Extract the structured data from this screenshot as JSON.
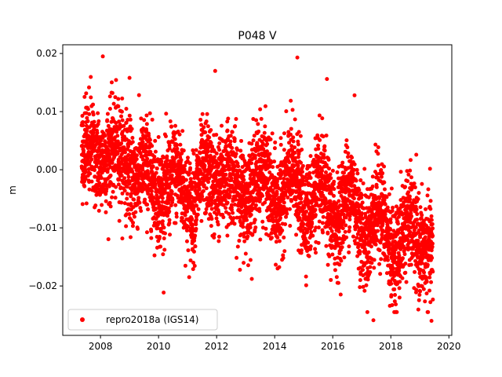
{
  "chart_data": {
    "type": "scatter",
    "title": "P048 V",
    "xlabel": "",
    "ylabel": "m",
    "xlim": [
      2006.7,
      2020.1
    ],
    "ylim": [
      -0.0285,
      0.0215
    ],
    "x_ticks": [
      2008,
      2010,
      2012,
      2014,
      2016,
      2018,
      2020
    ],
    "x_tick_labels": [
      "2008",
      "2010",
      "2012",
      "2014",
      "2016",
      "2018",
      "2020"
    ],
    "y_ticks": [
      -0.02,
      -0.01,
      0.0,
      0.01,
      0.02
    ],
    "y_tick_labels": [
      "−0.02",
      "−0.01",
      "0.00",
      "0.01",
      "0.02"
    ],
    "grid": false,
    "legend_position": "lower-left",
    "series": [
      {
        "name": "repro2018a (IGS14)",
        "color": "#ff0000",
        "marker": "circle",
        "trend_points": [
          [
            2007.35,
            0.001
          ],
          [
            2007.7,
            0.004
          ],
          [
            2008.1,
            0.003
          ],
          [
            2008.5,
            0.0015
          ],
          [
            2008.9,
            0.003
          ],
          [
            2009.3,
            -0.002
          ],
          [
            2009.8,
            -0.001
          ],
          [
            2010.3,
            -0.004
          ],
          [
            2010.8,
            -0.001
          ],
          [
            2011.2,
            -0.006
          ],
          [
            2011.7,
            -0.0005
          ],
          [
            2012.2,
            -0.001
          ],
          [
            2012.7,
            -0.0035
          ],
          [
            2013.2,
            -0.0025
          ],
          [
            2013.7,
            -0.0015
          ],
          [
            2014.2,
            -0.0055
          ],
          [
            2014.7,
            -0.0015
          ],
          [
            2015.2,
            -0.0065
          ],
          [
            2015.7,
            -0.004
          ],
          [
            2016.2,
            -0.0085
          ],
          [
            2016.7,
            -0.004
          ],
          [
            2017.2,
            -0.0115
          ],
          [
            2017.7,
            -0.0075
          ],
          [
            2018.2,
            -0.0145
          ],
          [
            2018.7,
            -0.0095
          ],
          [
            2019.1,
            -0.0125
          ],
          [
            2019.45,
            -0.016
          ]
        ],
        "noise_sd": 0.0042,
        "outliers": [
          [
            2008.08,
            0.0195
          ],
          [
            2014.78,
            0.0193
          ],
          [
            2011.95,
            0.017
          ],
          [
            2009.0,
            0.0158
          ],
          [
            2015.8,
            0.0156
          ],
          [
            2016.75,
            0.0128
          ],
          [
            2017.4,
            -0.0259
          ],
          [
            2019.4,
            -0.026
          ],
          [
            2014.1,
            -0.017
          ],
          [
            2011.2,
            -0.016
          ],
          [
            2018.3,
            -0.022
          ]
        ]
      }
    ]
  }
}
